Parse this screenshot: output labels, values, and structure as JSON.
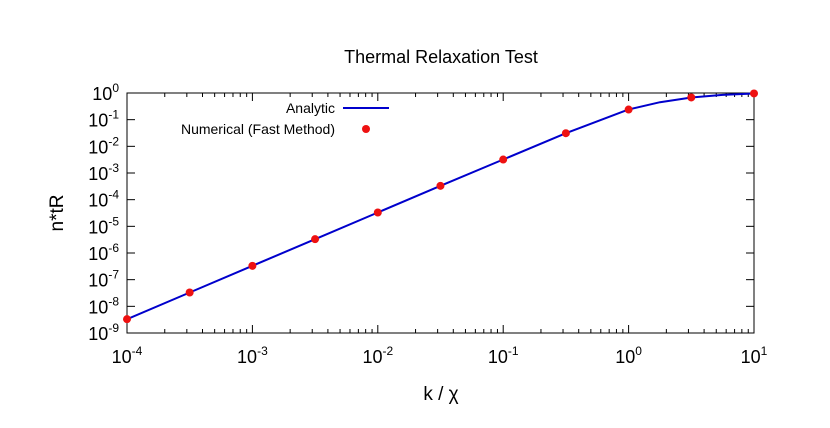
{
  "chart_data": {
    "type": "line",
    "title": "Thermal Relaxation Test",
    "xlabel": "k / χ",
    "ylabel": "n*tR",
    "x_scale": "log",
    "y_scale": "log",
    "xlim": [
      0.0001,
      10
    ],
    "ylim": [
      1e-09,
      1
    ],
    "x_tick_labels": [
      {
        "base": "10",
        "exp": "-4",
        "value": 0.0001
      },
      {
        "base": "10",
        "exp": "-3",
        "value": 0.001
      },
      {
        "base": "10",
        "exp": "-2",
        "value": 0.01
      },
      {
        "base": "10",
        "exp": "-1",
        "value": 0.1
      },
      {
        "base": "10",
        "exp": "0",
        "value": 1
      },
      {
        "base": "10",
        "exp": "1",
        "value": 10
      }
    ],
    "y_tick_labels": [
      {
        "base": "10",
        "exp": "-9",
        "value": 1e-09
      },
      {
        "base": "10",
        "exp": "-8",
        "value": 1e-08
      },
      {
        "base": "10",
        "exp": "-7",
        "value": 1e-07
      },
      {
        "base": "10",
        "exp": "-6",
        "value": 1e-06
      },
      {
        "base": "10",
        "exp": "-5",
        "value": 1e-05
      },
      {
        "base": "10",
        "exp": "-4",
        "value": 0.0001
      },
      {
        "base": "10",
        "exp": "-3",
        "value": 0.001
      },
      {
        "base": "10",
        "exp": "-2",
        "value": 0.01
      },
      {
        "base": "10",
        "exp": "-1",
        "value": 0.1
      },
      {
        "base": "10",
        "exp": "0",
        "value": 1
      }
    ],
    "grid": false,
    "legend": {
      "position": "top-left"
    },
    "series": [
      {
        "name": "Analytic",
        "style": "line",
        "color": "#0000cc",
        "x": [
          0.0001,
          0.000316,
          0.001,
          0.00316,
          0.01,
          0.0316,
          0.1,
          0.316,
          1,
          1.78,
          3.16,
          5.62,
          10
        ],
        "y": [
          3.3e-09,
          3.3e-08,
          3.3e-07,
          3.3e-06,
          3.3e-05,
          0.00033,
          0.0032,
          0.031,
          0.24,
          0.45,
          0.68,
          0.85,
          0.96
        ]
      },
      {
        "name": "Numerical (Fast Method)",
        "style": "points",
        "color": "#ee1111",
        "x": [
          0.0001,
          0.000316,
          0.001,
          0.00316,
          0.01,
          0.0316,
          0.1,
          0.316,
          1,
          3.16,
          10
        ],
        "y": [
          3.3e-09,
          3.3e-08,
          3.3e-07,
          3.3e-06,
          3.3e-05,
          0.00033,
          0.0032,
          0.031,
          0.24,
          0.68,
          0.96
        ]
      }
    ]
  }
}
